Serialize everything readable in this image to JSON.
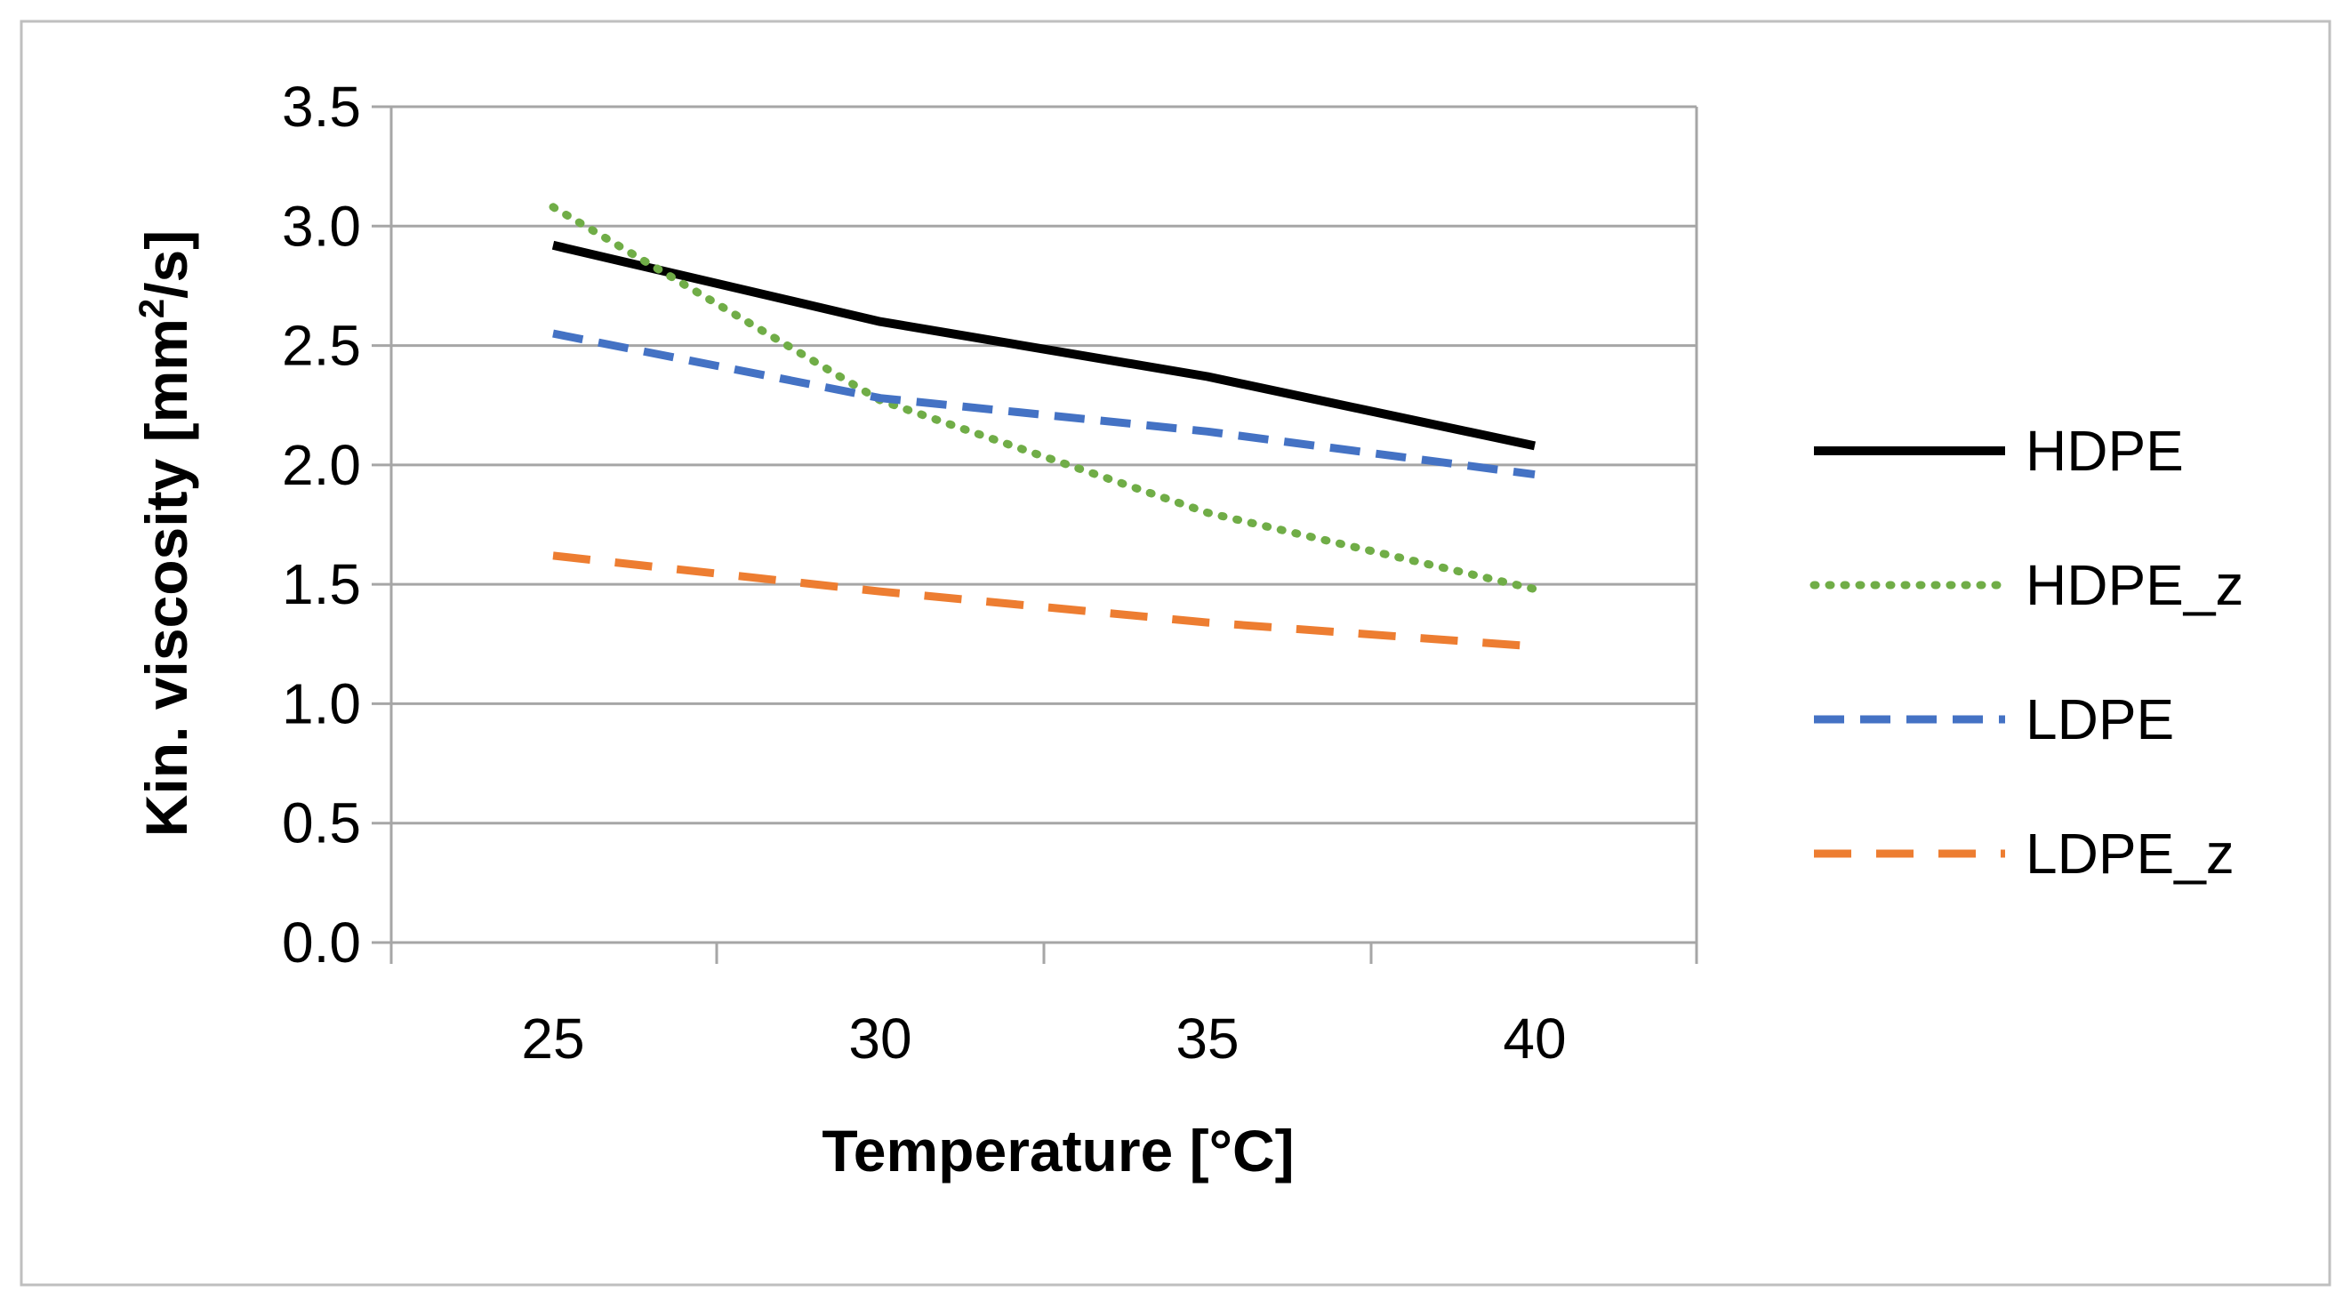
{
  "chart_data": {
    "type": "line",
    "title": "",
    "xlabel": "Temperature [°C]",
    "ylabel_prefix": "Kin. viscosity [mm",
    "ylabel_sup": "2",
    "ylabel_suffix": "/s]",
    "x": [
      25,
      30,
      35,
      40
    ],
    "xtick_labels": [
      "25",
      "30",
      "35",
      "40"
    ],
    "ytick_labels": [
      "0.0",
      "0.5",
      "1.0",
      "1.5",
      "2.0",
      "2.5",
      "3.0",
      "3.5"
    ],
    "ylim": [
      0,
      3.5
    ],
    "grid": true,
    "legend_position": "right",
    "series": [
      {
        "name": "HDPE",
        "values": [
          2.92,
          2.6,
          2.37,
          2.08
        ],
        "color": "#000000",
        "style": "solid"
      },
      {
        "name": "HDPE_z",
        "values": [
          3.08,
          2.27,
          1.8,
          1.48
        ],
        "color": "#70AD47",
        "style": "dotted"
      },
      {
        "name": "LDPE",
        "values": [
          2.55,
          2.28,
          2.14,
          1.96
        ],
        "color": "#4472C4",
        "style": "dashed"
      },
      {
        "name": "LDPE_z",
        "values": [
          1.62,
          1.47,
          1.34,
          1.24
        ],
        "color": "#ED7D31",
        "style": "longdash"
      }
    ]
  }
}
